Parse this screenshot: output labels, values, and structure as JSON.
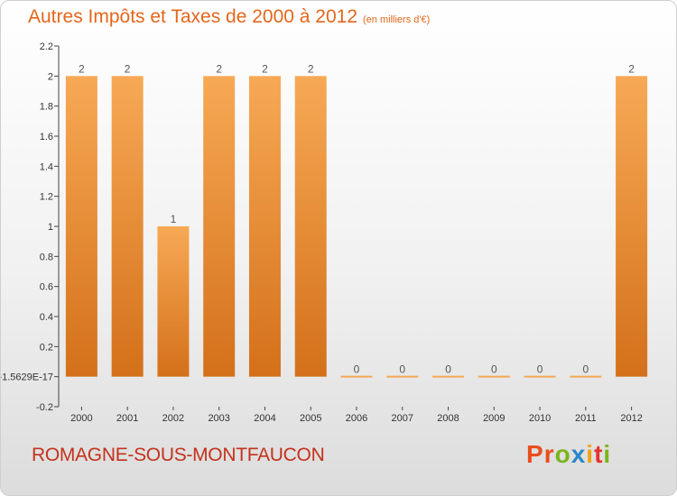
{
  "title": "Autres Impôts et Taxes de 2000 à 2012",
  "title_unit": "(en milliers d'€)",
  "commune": "ROMAGNE-SOUS-MONTFAUCON",
  "logo": {
    "letters": [
      "P",
      "r",
      "o",
      "x",
      "i",
      "t",
      "i"
    ],
    "colors": [
      "#e84e1b",
      "#e84e1b",
      "#7ab51d",
      "#2a87c8",
      "#f2a20f",
      "#e4332b",
      "#7ab51d"
    ]
  },
  "colors": {
    "bar_light": "#f7a955",
    "bar_dark": "#d4701a",
    "title": "#e4661b",
    "commune": "#c4321c"
  },
  "chart_data": {
    "type": "bar",
    "categories": [
      "2000",
      "2001",
      "2002",
      "2003",
      "2004",
      "2005",
      "2006",
      "2007",
      "2008",
      "2009",
      "2010",
      "2011",
      "2012"
    ],
    "values": [
      2,
      2,
      1,
      2,
      2,
      2,
      0,
      0,
      0,
      0,
      0,
      0,
      2
    ],
    "data_labels": [
      "2",
      "2",
      "1",
      "2",
      "2",
      "2",
      "0",
      "0",
      "0",
      "0",
      "0",
      "0",
      "2"
    ],
    "ylim": [
      -0.2,
      2.2
    ],
    "yticks": [
      -0.2,
      0,
      0.2,
      0.4,
      0.6,
      0.8,
      1,
      1.2,
      1.4,
      1.6,
      1.8,
      2,
      2.2
    ],
    "ytick_labels": [
      "-0.2",
      "-1.5629E-17",
      "0.2",
      "0.4",
      "0.6",
      "0.8",
      "1",
      "1.2",
      "1.4",
      "1.6",
      "1.8",
      "2",
      "2.2"
    ],
    "grid": false
  }
}
